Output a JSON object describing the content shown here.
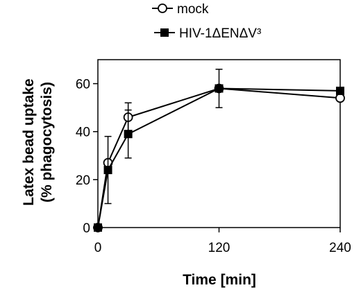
{
  "chart_data": {
    "type": "line",
    "title": "",
    "xlabel": "Time [min]",
    "ylabel_lines": [
      "Latex bead uptake",
      "(% phagocytosis)"
    ],
    "xlim": [
      0,
      240
    ],
    "ylim": [
      0,
      70
    ],
    "x_ticks": [
      0,
      120,
      240
    ],
    "y_ticks": [
      0,
      20,
      40,
      60
    ],
    "grid": false,
    "legend_position": "top",
    "series": [
      {
        "name": "mock",
        "marker": "open-circle",
        "x": [
          0,
          10,
          30,
          120,
          240
        ],
        "y": [
          0,
          27,
          46,
          58,
          54
        ],
        "err": [
          0,
          0,
          6,
          0,
          0
        ]
      },
      {
        "name": "HIV-1ΔENΔV³",
        "marker": "filled-square",
        "x": [
          0,
          10,
          30,
          120,
          240
        ],
        "y": [
          0,
          24,
          39,
          58,
          57
        ],
        "err": [
          0,
          14,
          10,
          8,
          0
        ]
      }
    ]
  }
}
